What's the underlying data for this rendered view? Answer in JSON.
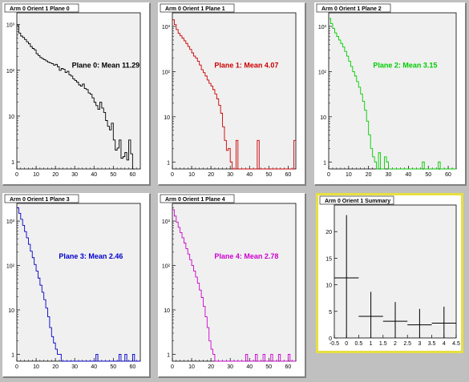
{
  "colors": {
    "frame": "#f0f0f0",
    "select": "#e8e040"
  },
  "chart_data": [
    {
      "type": "line",
      "title": "Arm 0 Orient 1 Plane 0",
      "annotation": "Plane 0: Mean 11.29",
      "color": "#000000",
      "log_y": true,
      "xlim": [
        0,
        64
      ],
      "ylim": [
        0.7,
        1800
      ],
      "xticks": [
        0,
        10,
        20,
        30,
        40,
        50,
        60
      ],
      "yticks": [
        {
          "v": 1,
          "t": "1"
        },
        {
          "v": 10,
          "t": "10"
        },
        {
          "v": 100,
          "t": "10²"
        },
        {
          "v": 1000,
          "t": "10³"
        }
      ],
      "x": [
        0,
        1,
        2,
        3,
        4,
        5,
        6,
        7,
        8,
        9,
        10,
        11,
        12,
        13,
        14,
        15,
        16,
        17,
        18,
        19,
        20,
        21,
        22,
        23,
        24,
        25,
        26,
        27,
        28,
        29,
        30,
        31,
        32,
        33,
        34,
        35,
        36,
        37,
        38,
        39,
        40,
        41,
        42,
        43,
        44,
        45,
        46,
        47,
        48,
        49,
        50,
        51,
        52,
        53,
        54,
        55,
        56,
        57,
        58,
        59,
        60
      ],
      "values": [
        950,
        650,
        560,
        520,
        470,
        420,
        380,
        330,
        300,
        280,
        230,
        210,
        190,
        180,
        170,
        160,
        150,
        145,
        140,
        130,
        135,
        120,
        100,
        110,
        105,
        90,
        95,
        80,
        75,
        65,
        60,
        55,
        48,
        45,
        50,
        40,
        38,
        32,
        30,
        25,
        20,
        17,
        14,
        20,
        15,
        12,
        8,
        6,
        5,
        7,
        3,
        1.8,
        2,
        3,
        1.2,
        1.3,
        1.6,
        1.1,
        3,
        1.5,
        0
      ]
    },
    {
      "type": "line",
      "title": "Arm 0 Orient 1 Plane 1",
      "annotation": "Plane 1: Mean 4.07",
      "color": "#cc0000",
      "log_y": true,
      "xlim": [
        0,
        64
      ],
      "ylim": [
        0.7,
        2000
      ],
      "xticks": [
        0,
        10,
        20,
        30,
        40,
        50,
        60
      ],
      "yticks": [
        {
          "v": 1,
          "t": "1"
        },
        {
          "v": 10,
          "t": "10"
        },
        {
          "v": 100,
          "t": "10²"
        },
        {
          "v": 1000,
          "t": "10³"
        }
      ],
      "x": [
        0,
        1,
        2,
        3,
        4,
        5,
        6,
        7,
        8,
        9,
        10,
        11,
        12,
        13,
        14,
        15,
        16,
        17,
        18,
        19,
        20,
        21,
        22,
        23,
        24,
        25,
        26,
        27,
        28,
        29,
        30,
        31,
        32,
        33,
        34,
        35,
        36,
        37,
        38,
        39,
        40,
        41,
        42,
        43,
        44,
        45,
        46,
        47,
        48,
        49,
        50,
        51,
        52,
        53,
        54,
        55,
        56,
        57,
        58,
        59,
        60,
        61,
        62,
        63
      ],
      "values": [
        1400,
        1100,
        850,
        700,
        620,
        550,
        480,
        420,
        360,
        310,
        260,
        220,
        200,
        170,
        140,
        110,
        95,
        80,
        65,
        55,
        48,
        40,
        32,
        25,
        18,
        12,
        6,
        3,
        1.8,
        2,
        1,
        0,
        0,
        3,
        0,
        0,
        0,
        0,
        0,
        0,
        0,
        0,
        0,
        0,
        3,
        0,
        0,
        0,
        0,
        0,
        0,
        0,
        0,
        0,
        0,
        0,
        0,
        0,
        0,
        0,
        0,
        0,
        0,
        3
      ]
    },
    {
      "type": "line",
      "title": "Arm 0 Orient 1 Plane 2",
      "annotation": "Plane 2: Mean 3.15",
      "color": "#00cc00",
      "log_y": true,
      "xlim": [
        0,
        64
      ],
      "ylim": [
        0.7,
        2000
      ],
      "xticks": [
        0,
        10,
        20,
        30,
        40,
        50,
        60
      ],
      "yticks": [
        {
          "v": 1,
          "t": "1"
        },
        {
          "v": 10,
          "t": "10"
        },
        {
          "v": 100,
          "t": "10²"
        },
        {
          "v": 1000,
          "t": "10³"
        }
      ],
      "x": [
        0,
        1,
        2,
        3,
        4,
        5,
        6,
        7,
        8,
        9,
        10,
        11,
        12,
        13,
        14,
        15,
        16,
        17,
        18,
        19,
        20,
        21,
        22,
        23,
        24,
        25,
        26,
        27,
        28,
        29,
        30,
        31,
        32,
        33,
        34,
        35,
        36,
        37,
        38,
        39,
        40,
        41,
        42,
        43,
        44,
        45,
        46,
        47,
        48,
        49,
        50,
        51,
        52,
        53,
        54,
        55,
        56,
        57,
        58,
        59,
        60,
        61,
        62,
        63
      ],
      "values": [
        1500,
        1150,
        900,
        720,
        600,
        500,
        420,
        350,
        280,
        220,
        170,
        130,
        100,
        80,
        60,
        45,
        32,
        22,
        14,
        8,
        4,
        2,
        1.3,
        1,
        0,
        1.6,
        0,
        0,
        1.3,
        1,
        0,
        0,
        0,
        0,
        0,
        0,
        0,
        0,
        0,
        0,
        0,
        0,
        0,
        0,
        0,
        0,
        0,
        1,
        0,
        0,
        0,
        0,
        0,
        0,
        0,
        1,
        0,
        0,
        0,
        0,
        0,
        0,
        0,
        0
      ]
    },
    {
      "type": "line",
      "title": "Arm 0 Orient 1 Plane 3",
      "annotation": "Plane 3: Mean 2.46",
      "color": "#0000cc",
      "log_y": true,
      "xlim": [
        0,
        64
      ],
      "ylim": [
        0.7,
        2500
      ],
      "xticks": [
        0,
        10,
        20,
        30,
        40,
        50,
        60
      ],
      "yticks": [
        {
          "v": 1,
          "t": "1"
        },
        {
          "v": 10,
          "t": "10"
        },
        {
          "v": 100,
          "t": "10²"
        },
        {
          "v": 1000,
          "t": "10³"
        }
      ],
      "x": [
        0,
        1,
        2,
        3,
        4,
        5,
        6,
        7,
        8,
        9,
        10,
        11,
        12,
        13,
        14,
        15,
        16,
        17,
        18,
        19,
        20,
        21,
        22,
        23,
        24,
        25,
        26,
        27,
        28,
        29,
        30,
        31,
        32,
        33,
        34,
        35,
        36,
        37,
        38,
        39,
        40,
        41,
        42,
        43,
        44,
        45,
        46,
        47,
        48,
        49,
        50,
        51,
        52,
        53,
        54,
        55,
        56,
        57,
        58,
        59,
        60,
        61,
        62,
        63
      ],
      "values": [
        2000,
        1500,
        1100,
        800,
        580,
        420,
        300,
        210,
        150,
        105,
        75,
        52,
        36,
        25,
        17,
        11,
        7,
        4,
        2.5,
        1.8,
        1.3,
        1,
        1,
        0,
        0,
        0,
        0,
        0,
        0,
        0,
        0,
        0,
        0,
        0,
        0,
        0,
        0,
        0,
        0,
        0,
        0,
        1,
        0,
        0,
        0,
        0,
        0,
        0,
        0,
        0,
        0,
        0,
        0,
        1,
        0,
        0,
        1,
        0,
        0,
        0,
        1,
        0,
        0,
        0
      ]
    },
    {
      "type": "line",
      "title": "Arm 0 Orient 1 Plane 4",
      "annotation": "Plane 4: Mean 2.78",
      "color": "#cc00cc",
      "log_y": true,
      "xlim": [
        0,
        64
      ],
      "ylim": [
        0.7,
        2500
      ],
      "xticks": [
        0,
        10,
        20,
        30,
        40,
        50,
        60
      ],
      "yticks": [
        {
          "v": 1,
          "t": "1"
        },
        {
          "v": 10,
          "t": "10"
        },
        {
          "v": 100,
          "t": "10²"
        },
        {
          "v": 1000,
          "t": "10³"
        }
      ],
      "x": [
        0,
        1,
        2,
        3,
        4,
        5,
        6,
        7,
        8,
        9,
        10,
        11,
        12,
        13,
        14,
        15,
        16,
        17,
        18,
        19,
        20,
        21,
        22,
        23,
        24,
        25,
        26,
        27,
        28,
        29,
        30,
        31,
        32,
        33,
        34,
        35,
        36,
        37,
        38,
        39,
        40,
        41,
        42,
        43,
        44,
        45,
        46,
        47,
        48,
        49,
        50,
        51,
        52,
        53,
        54,
        55,
        56,
        57,
        58,
        59,
        60,
        61,
        62,
        63
      ],
      "values": [
        1800,
        1300,
        950,
        720,
        550,
        420,
        320,
        240,
        180,
        135,
        100,
        75,
        55,
        40,
        28,
        19,
        12,
        7,
        4,
        2,
        1.3,
        1,
        0,
        0,
        0,
        0,
        0,
        0,
        0,
        0,
        0,
        0,
        0,
        0,
        0,
        0,
        0,
        0,
        1,
        0,
        0,
        0,
        0,
        1,
        0,
        0,
        0,
        1,
        0,
        0,
        0,
        1,
        0,
        0,
        0,
        1,
        0,
        0,
        0,
        0,
        1,
        0,
        0,
        0
      ]
    },
    {
      "type": "scatter",
      "title": "Arm 0 Orient 1 Summary",
      "color": "#000000",
      "log_y": false,
      "xlim": [
        -0.5,
        4.5
      ],
      "ylim": [
        0,
        25
      ],
      "xticks": [
        {
          "v": -0.5,
          "t": "-0.5"
        },
        {
          "v": 0,
          "t": "0"
        },
        {
          "v": 0.5,
          "t": "0.5"
        },
        {
          "v": 1,
          "t": "1"
        },
        {
          "v": 1.5,
          "t": "1.5"
        },
        {
          "v": 2,
          "t": "2"
        },
        {
          "v": 2.5,
          "t": "2.5"
        },
        {
          "v": 3,
          "t": "3"
        },
        {
          "v": 3.5,
          "t": "3.5"
        },
        {
          "v": 4,
          "t": "4"
        },
        {
          "v": 4.5,
          "t": "4.5"
        }
      ],
      "yticks": [
        {
          "v": 0,
          "t": "0"
        },
        {
          "v": 5,
          "t": "5"
        },
        {
          "v": 10,
          "t": "10"
        },
        {
          "v": 15,
          "t": "15"
        },
        {
          "v": 20,
          "t": "20"
        }
      ],
      "points": [
        {
          "x": 0,
          "y": 11.29,
          "xerr": 0.5,
          "yerr": 11.8
        },
        {
          "x": 1,
          "y": 4.07,
          "xerr": 0.5,
          "yerr": 4.6
        },
        {
          "x": 2,
          "y": 3.15,
          "xerr": 0.5,
          "yerr": 3.6
        },
        {
          "x": 3,
          "y": 2.46,
          "xerr": 0.5,
          "yerr": 3.0
        },
        {
          "x": 4,
          "y": 2.78,
          "xerr": 0.5,
          "yerr": 3.1
        }
      ]
    }
  ]
}
